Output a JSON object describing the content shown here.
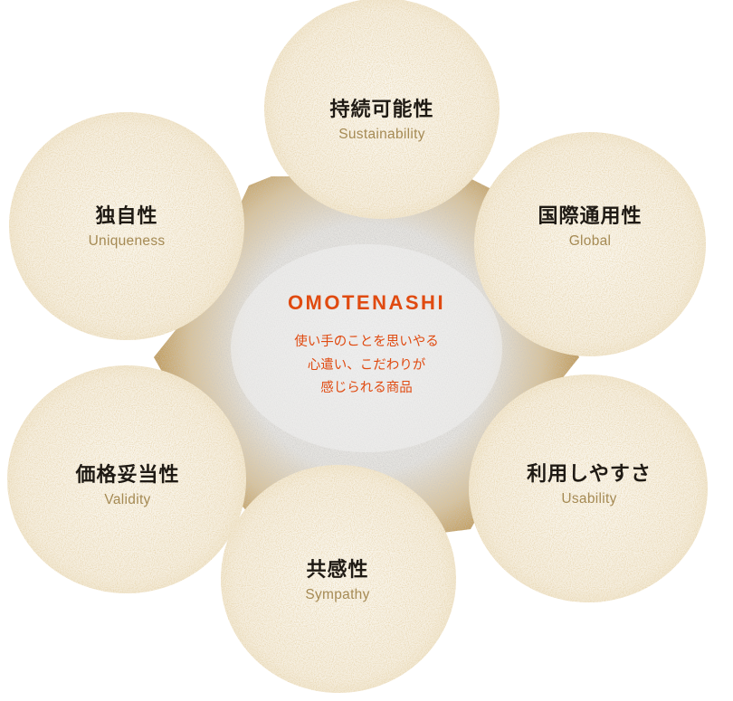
{
  "colors": {
    "accent": "#e04a10",
    "petal_fill": "#f7f2e8",
    "petal_grain": "#c9a765",
    "hub_fill": "#ececec",
    "hub_edge": "#c8a466",
    "label_dark": "#1f1a14",
    "label_gold": "#a58a54"
  },
  "center": {
    "title": "OMOTENASHI",
    "description": [
      "使い手のことを思いやる",
      "心遣い、こだわりが",
      "感じられる商品"
    ]
  },
  "qualities": [
    {
      "id": "sustainability",
      "ja": "持続可能性",
      "en": "Sustainability"
    },
    {
      "id": "global",
      "ja": "国際通用性",
      "en": "Global"
    },
    {
      "id": "usability",
      "ja": "利用しやすさ",
      "en": "Usability"
    },
    {
      "id": "sympathy",
      "ja": "共感性",
      "en": "Sympathy"
    },
    {
      "id": "validity",
      "ja": "価格妥当性",
      "en": "Validity"
    },
    {
      "id": "uniqueness",
      "ja": "独自性",
      "en": "Uniqueness"
    }
  ]
}
